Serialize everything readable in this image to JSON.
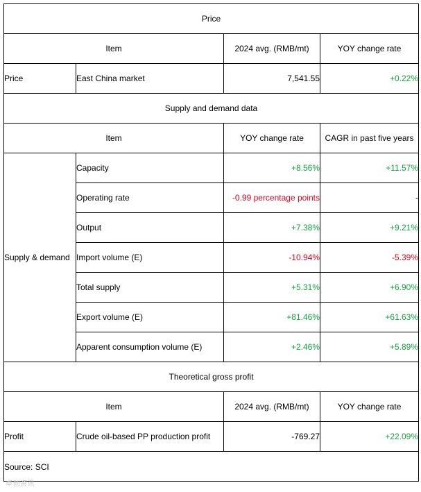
{
  "price_section": {
    "title": "Price",
    "headers": [
      "Item",
      "2024 avg. (RMB/mt)",
      "YOY change rate"
    ],
    "row": {
      "category": "Price",
      "item": "East China market",
      "value": "7,541.55",
      "yoy": "+0.22%"
    }
  },
  "supply_section": {
    "title": "Supply and demand data",
    "headers": [
      "Item",
      "YOY change rate",
      "CAGR in past five years"
    ],
    "category": "Supply & demand",
    "rows": [
      {
        "item": "Capacity",
        "yoy": "+8.56%",
        "cagr": "+11.57%"
      },
      {
        "item": "Operating rate",
        "yoy": "-0.99 percentage points",
        "cagr": "-"
      },
      {
        "item": "Output",
        "yoy": "+7.38%",
        "cagr": "+9.21%"
      },
      {
        "item": "Import volume (E)",
        "yoy": "-10.94%",
        "cagr": "-5.39%"
      },
      {
        "item": "Total supply",
        "yoy": "+5.31%",
        "cagr": "+6.90%"
      },
      {
        "item": "Export volume (E)",
        "yoy": "+81.46%",
        "cagr": "+61.63%"
      },
      {
        "item": "Apparent consumption volume (E)",
        "yoy": "+2.46%",
        "cagr": "+5.89%"
      }
    ]
  },
  "profit_section": {
    "title": "Theoretical gross profit",
    "headers": [
      "Item",
      "2024 avg. (RMB/mt)",
      "YOY change rate"
    ],
    "row": {
      "category": "Profit",
      "item": "Crude oil-based PP production profit",
      "value": "-769.27",
      "yoy": "+22.09%"
    }
  },
  "source": "Source: SCI",
  "watermark": "卓创资讯",
  "colors": {
    "positive": "#12a23e",
    "negative": "#e0001b",
    "border": "#000000"
  }
}
